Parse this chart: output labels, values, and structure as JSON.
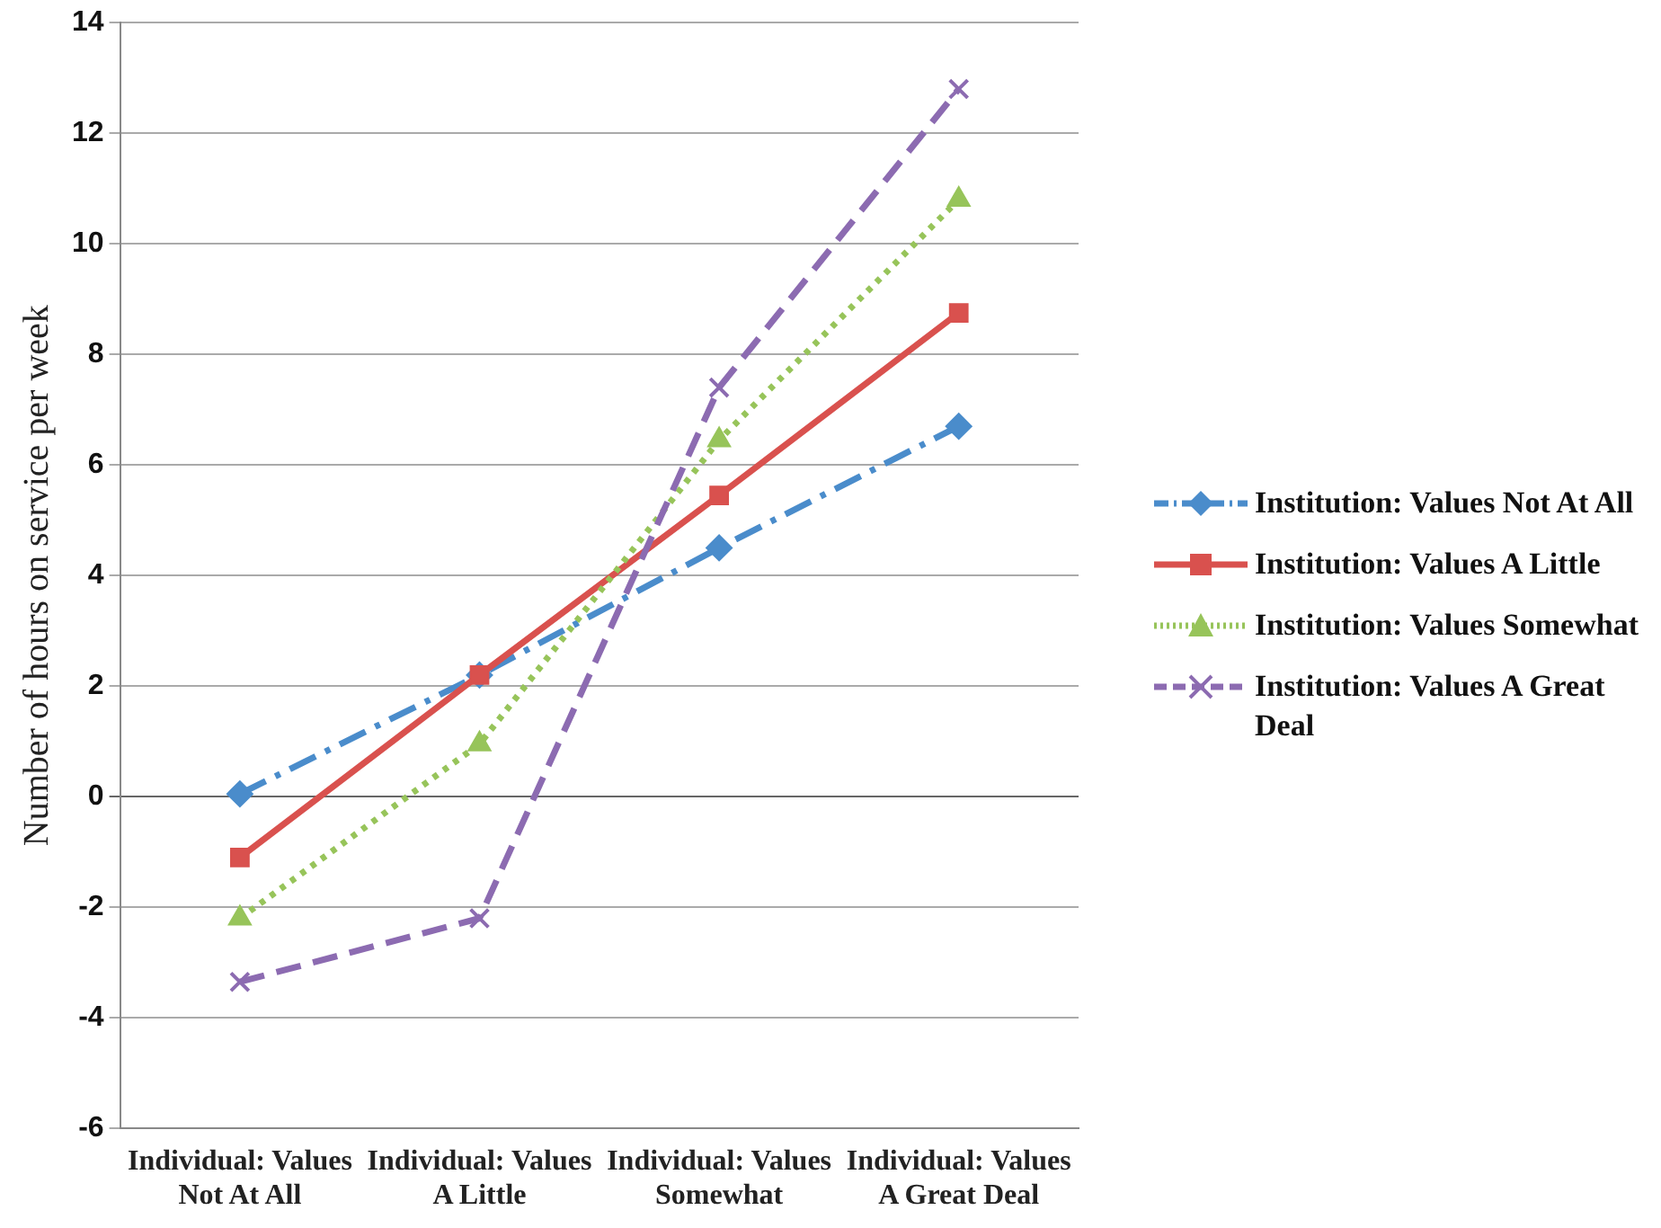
{
  "chart_data": {
    "type": "line",
    "ylabel": "Number of hours on service per week",
    "categories": [
      "Individual: Values Not At All",
      "Individual: Values A Little",
      "Individual: Values Somewhat",
      "Individual: Values A Great Deal"
    ],
    "series": [
      {
        "name": "Institution: Values Not At All",
        "color": "#4a8ccb",
        "values": [
          0.05,
          2.2,
          4.5,
          6.7
        ],
        "marker": "diamond",
        "line_style": "dashdot"
      },
      {
        "name": "Institution: Values A Little",
        "color": "#d9514e",
        "values": [
          -1.1,
          2.2,
          5.45,
          8.75
        ],
        "marker": "square",
        "line_style": "solid"
      },
      {
        "name": "Institution: Values Somewhat",
        "color": "#97c45a",
        "values": [
          -2.2,
          0.95,
          6.45,
          10.8
        ],
        "marker": "triangle",
        "line_style": "dotted"
      },
      {
        "name": "Institution: Values A Great Deal",
        "color": "#8c6bb1",
        "values": [
          -3.35,
          -2.2,
          7.4,
          12.8
        ],
        "marker": "cross",
        "line_style": "dashed"
      }
    ],
    "ylim": [
      -6,
      14
    ],
    "yticks": [
      -6,
      -4,
      -2,
      0,
      2,
      4,
      6,
      8,
      10,
      12,
      14
    ],
    "grid": "y",
    "legend": "right"
  }
}
